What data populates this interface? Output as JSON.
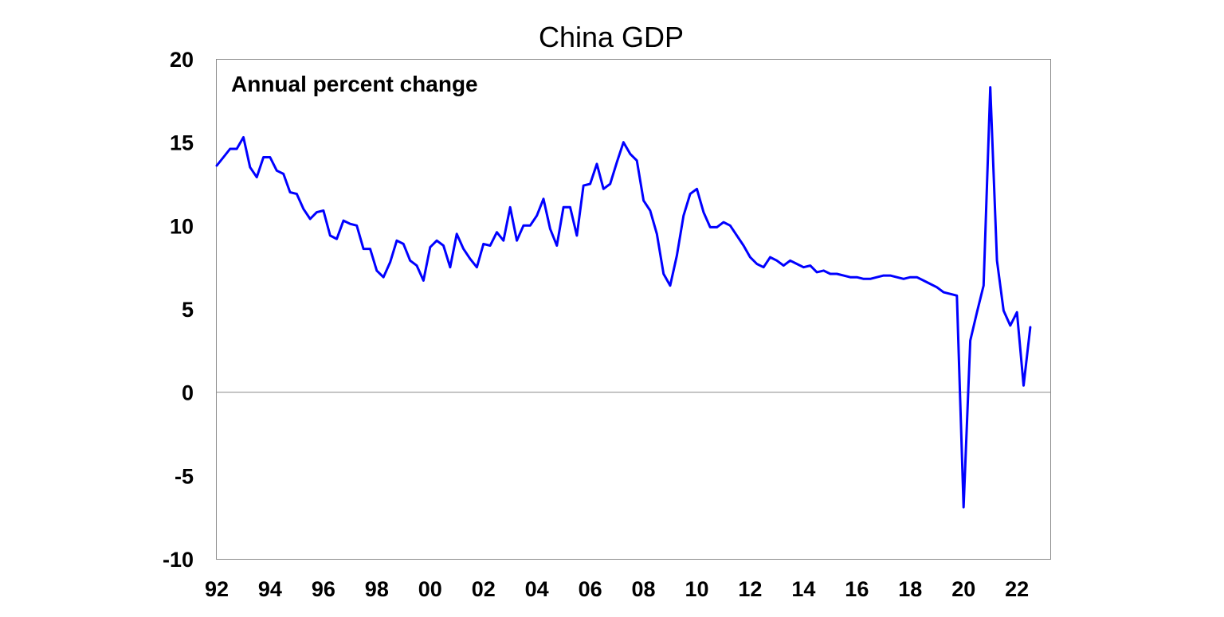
{
  "chart_data": {
    "type": "line",
    "title": "China GDP",
    "subtitle": "Annual percent change",
    "xlabel": "",
    "ylabel": "",
    "xlim": [
      1992.0,
      2023.25
    ],
    "ylim": [
      -10,
      20
    ],
    "yticks": [
      20,
      15,
      10,
      5,
      0,
      -5,
      -10
    ],
    "ytick_labels": [
      "20",
      "15",
      "10",
      "5",
      "0",
      "-5",
      "-10"
    ],
    "xticks": [
      1992,
      1994,
      1996,
      1998,
      2000,
      2002,
      2004,
      2006,
      2008,
      2010,
      2012,
      2014,
      2016,
      2018,
      2020,
      2022
    ],
    "xtick_labels": [
      "92",
      "94",
      "96",
      "98",
      "00",
      "02",
      "04",
      "06",
      "08",
      "10",
      "12",
      "14",
      "16",
      "18",
      "20",
      "22"
    ],
    "grid": false,
    "zero_line": true,
    "line_color": "#0000ff",
    "series": [
      {
        "x": [
          1992.0,
          1992.25,
          1992.5,
          1992.75,
          1993.0,
          1993.25,
          1993.5,
          1993.75,
          1994.0,
          1994.25,
          1994.5,
          1994.75,
          1995.0,
          1995.25,
          1995.5,
          1995.75,
          1996.0,
          1996.25,
          1996.5,
          1996.75,
          1997.0,
          1997.25,
          1997.5,
          1997.75,
          1998.0,
          1998.25,
          1998.5,
          1998.75,
          1999.0,
          1999.25,
          1999.5,
          1999.75,
          2000.0,
          2000.25,
          2000.5,
          2000.75,
          2001.0,
          2001.25,
          2001.5,
          2001.75,
          2002.0,
          2002.25,
          2002.5,
          2002.75,
          2003.0,
          2003.25,
          2003.5,
          2003.75,
          2004.0,
          2004.25,
          2004.5,
          2004.75,
          2005.0,
          2005.25,
          2005.5,
          2005.75,
          2006.0,
          2006.25,
          2006.5,
          2006.75,
          2007.0,
          2007.25,
          2007.5,
          2007.75,
          2008.0,
          2008.25,
          2008.5,
          2008.75,
          2009.0,
          2009.25,
          2009.5,
          2009.75,
          2010.0,
          2010.25,
          2010.5,
          2010.75,
          2011.0,
          2011.25,
          2011.5,
          2011.75,
          2012.0,
          2012.25,
          2012.5,
          2012.75,
          2013.0,
          2013.25,
          2013.5,
          2013.75,
          2014.0,
          2014.25,
          2014.5,
          2014.75,
          2015.0,
          2015.25,
          2015.5,
          2015.75,
          2016.0,
          2016.25,
          2016.5,
          2016.75,
          2017.0,
          2017.25,
          2017.5,
          2017.75,
          2018.0,
          2018.25,
          2018.5,
          2018.75,
          2019.0,
          2019.25,
          2019.5,
          2019.75,
          2020.0,
          2020.25,
          2020.5,
          2020.75,
          2021.0,
          2021.25,
          2021.5,
          2021.75,
          2022.0,
          2022.25,
          2022.5
        ],
        "values": [
          13.6,
          14.1,
          14.6,
          14.6,
          15.3,
          13.5,
          12.9,
          14.1,
          14.1,
          13.3,
          13.1,
          12.0,
          11.9,
          11.0,
          10.4,
          10.8,
          10.9,
          9.4,
          9.2,
          10.3,
          10.1,
          10.0,
          8.6,
          8.6,
          7.3,
          6.9,
          7.8,
          9.1,
          8.9,
          7.9,
          7.6,
          6.7,
          8.7,
          9.1,
          8.8,
          7.5,
          9.5,
          8.6,
          8.0,
          7.5,
          8.9,
          8.8,
          9.6,
          9.1,
          11.1,
          9.1,
          10.0,
          10.0,
          10.6,
          11.6,
          9.8,
          8.8,
          11.1,
          11.1,
          9.4,
          12.4,
          12.5,
          13.7,
          12.2,
          12.5,
          13.8,
          15.0,
          14.3,
          13.9,
          11.5,
          10.9,
          9.5,
          7.1,
          6.4,
          8.2,
          10.6,
          11.9,
          12.2,
          10.8,
          9.9,
          9.9,
          10.2,
          10.0,
          9.4,
          8.8,
          8.1,
          7.7,
          7.5,
          8.1,
          7.9,
          7.6,
          7.9,
          7.7,
          7.5,
          7.6,
          7.2,
          7.3,
          7.1,
          7.1,
          7.0,
          6.9,
          6.9,
          6.8,
          6.8,
          6.9,
          7.0,
          7.0,
          6.9,
          6.8,
          6.9,
          6.9,
          6.7,
          6.5,
          6.3,
          6.0,
          5.9,
          5.8,
          -6.9,
          3.1,
          4.8,
          6.4,
          18.3,
          7.9,
          4.9,
          4.0,
          4.8,
          0.4,
          3.9
        ]
      }
    ]
  }
}
